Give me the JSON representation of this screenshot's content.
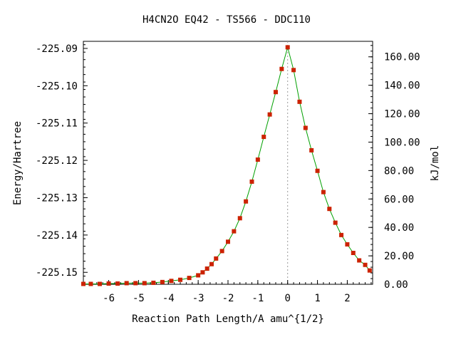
{
  "chart_data": {
    "type": "line",
    "title": "H4CN2O    EQ42 - TS566 - DDC110",
    "xlabel": "Reaction Path Length/A amu^{1/2}",
    "ylabel": "Energy/Hartree",
    "y2label": "kJ/mol",
    "xlim": [
      -6.85,
      2.85
    ],
    "ylim": [
      -225.1532,
      -225.0881
    ],
    "y2lim": [
      0.0,
      170.9
    ],
    "xticks": [
      -6,
      -5,
      -4,
      -3,
      -2,
      -1,
      0,
      1,
      2
    ],
    "xtick_labels": [
      "-6",
      "-5",
      "-4",
      "-3",
      "-2",
      "-1",
      "0",
      "1",
      "2"
    ],
    "yticks": [
      -225.15,
      -225.14,
      -225.13,
      -225.12,
      -225.11,
      -225.1,
      -225.09
    ],
    "ytick_labels": [
      "-225.15",
      "-225.14",
      "-225.13",
      "-225.12",
      "-225.11",
      "-225.10",
      "-225.09"
    ],
    "y2ticks": [
      0,
      20,
      40,
      60,
      80,
      100,
      120,
      140,
      160
    ],
    "y2tick_labels": [
      "0.00",
      "20.00",
      "40.00",
      "60.00",
      "80.00",
      "100.00",
      "120.00",
      "140.00",
      "160.00"
    ],
    "ts_marker_x": 0,
    "colors": {
      "line": "#00a000",
      "points": "#cc2200",
      "ts_marker": "#999999"
    },
    "series": [
      {
        "x": [
          -6.85,
          -6.6,
          -6.3,
          -6.0,
          -5.7,
          -5.4,
          -5.1,
          -4.8,
          -4.5,
          -4.2,
          -3.9,
          -3.6,
          -3.3,
          -3.0,
          -2.85,
          -2.7,
          -2.55,
          -2.4,
          -2.2,
          -2.0,
          -1.8,
          -1.6,
          -1.4,
          -1.2,
          -1.0,
          -0.8,
          -0.6,
          -0.4,
          -0.2,
          0.0,
          0.2,
          0.4,
          0.6,
          0.8,
          1.0,
          1.2,
          1.4,
          1.6,
          1.8,
          2.0,
          2.2,
          2.4,
          2.6,
          2.75
        ],
        "y": [
          -225.1531,
          -225.1531,
          -225.1531,
          -225.153,
          -225.153,
          -225.1529,
          -225.1529,
          -225.1529,
          -225.1528,
          -225.1526,
          -225.1523,
          -225.152,
          -225.1515,
          -225.1508,
          -225.15,
          -225.149,
          -225.1478,
          -225.1463,
          -225.1443,
          -225.1418,
          -225.139,
          -225.1355,
          -225.131,
          -225.1257,
          -225.1198,
          -225.1137,
          -225.1077,
          -225.1017,
          -225.0955,
          -225.0897,
          -225.0958,
          -225.1043,
          -225.1113,
          -225.1173,
          -225.1228,
          -225.1285,
          -225.133,
          -225.1367,
          -225.14,
          -225.1425,
          -225.1448,
          -225.1468,
          -225.148,
          -225.1495
        ]
      }
    ]
  }
}
